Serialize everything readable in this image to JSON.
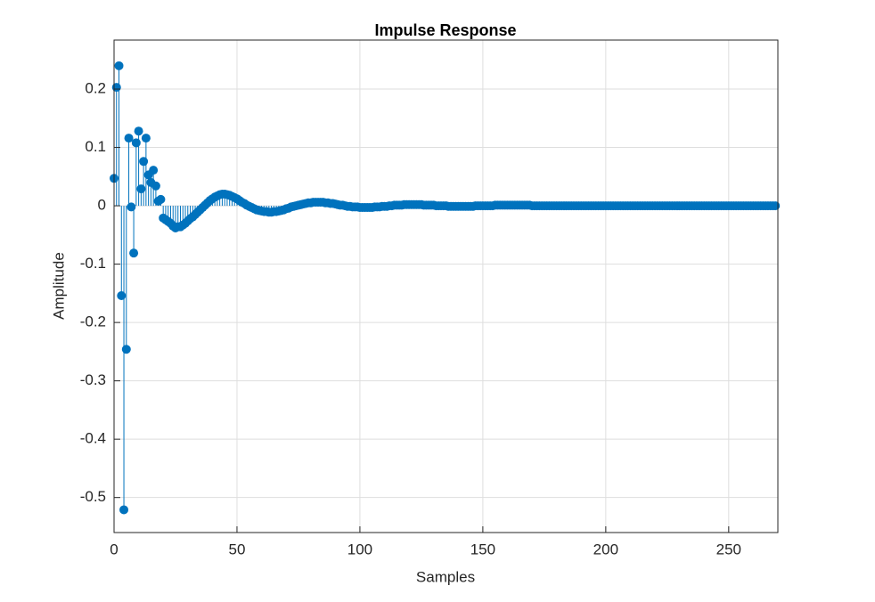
{
  "chart_data": {
    "type": "stem",
    "title": "Impulse Response",
    "x_label": "Samples",
    "y_label": "Amplitude",
    "color": "#0072bd",
    "grid": true,
    "xlim": [
      0,
      270
    ],
    "xticks": [
      0,
      50,
      100,
      150,
      200,
      250
    ],
    "ylim": [
      -0.56,
      0.284
    ],
    "yticks": [
      -0.5,
      -0.4,
      -0.3,
      -0.2,
      -0.1,
      0,
      0.1,
      0.2
    ],
    "values": [
      0.047,
      0.203,
      0.24,
      -0.154,
      -0.521,
      -0.246,
      0.116,
      -0.002,
      -0.081,
      0.108,
      0.128,
      0.029,
      0.076,
      0.116,
      0.053,
      0.04,
      0.061,
      0.034,
      0.008,
      0.011,
      -0.021,
      -0.024,
      -0.027,
      -0.03,
      -0.035,
      -0.038,
      -0.036,
      -0.036,
      -0.033,
      -0.03,
      -0.026,
      -0.022,
      -0.019,
      -0.015,
      -0.011,
      -0.007,
      -0.003,
      0.001,
      0.005,
      0.009,
      0.012,
      0.015,
      0.017,
      0.019,
      0.02,
      0.02,
      0.019,
      0.018,
      0.016,
      0.014,
      0.012,
      0.009,
      0.006,
      0.004,
      0.001,
      -0.001,
      -0.003,
      -0.005,
      -0.007,
      -0.008,
      -0.009,
      -0.01,
      -0.01,
      -0.011,
      -0.011,
      -0.01,
      -0.01,
      -0.009,
      -0.008,
      -0.007,
      -0.005,
      -0.004,
      -0.002,
      -0.001,
      0,
      0.001,
      0.002,
      0.003,
      0.004,
      0.005,
      0.005,
      0.006,
      0.006,
      0.006,
      0.006,
      0.006,
      0.005,
      0.005,
      0.004,
      0.004,
      0.003,
      0.002,
      0.001,
      0.001,
      0,
      -0.001,
      -0.001,
      -0.002,
      -0.002,
      -0.002,
      -0.003,
      -0.003,
      -0.003,
      -0.003,
      -0.003,
      -0.003,
      -0.002,
      -0.002,
      -0.002,
      -0.001,
      -0.001,
      -0.001,
      0,
      0,
      0.001,
      0.001,
      0.001,
      0.001,
      0.002,
      0.002,
      0.002,
      0.002,
      0.002,
      0.002,
      0.002,
      0.002,
      0.001,
      0.001,
      0.001,
      0.001,
      0.001,
      0,
      0,
      0,
      0,
      0,
      -0.001,
      -0.001,
      -0.001,
      -0.001,
      -0.001,
      -0.001,
      -0.001,
      -0.001,
      -0.001,
      -0.001,
      -0.001,
      0,
      0,
      0,
      0,
      0,
      0,
      0,
      0,
      0.001,
      0.001,
      0.001,
      0.001,
      0.001,
      0.001,
      0.001,
      0.001,
      0.001,
      0.001,
      0.001,
      0.001,
      0.001,
      0.001,
      0.001,
      0,
      0,
      0,
      0,
      0,
      0,
      0,
      0,
      0,
      0,
      0,
      0,
      0,
      0,
      0,
      0,
      0,
      0,
      0,
      0,
      0,
      0,
      0,
      0,
      0,
      0,
      0,
      0,
      0,
      0,
      0,
      0,
      0,
      0,
      0,
      0,
      0,
      0,
      0,
      0,
      0,
      0,
      0,
      0,
      0,
      0,
      0,
      0,
      0,
      0,
      0,
      0,
      0,
      0,
      0,
      0,
      0,
      0,
      0,
      0,
      0,
      0,
      0,
      0,
      0,
      0,
      0,
      0,
      0,
      0,
      0,
      0,
      0,
      0,
      0,
      0,
      0,
      0,
      0,
      0,
      0,
      0,
      0,
      0,
      0,
      0,
      0,
      0,
      0,
      0,
      0,
      0,
      0,
      0,
      0,
      0,
      0,
      0,
      0,
      0
    ]
  }
}
